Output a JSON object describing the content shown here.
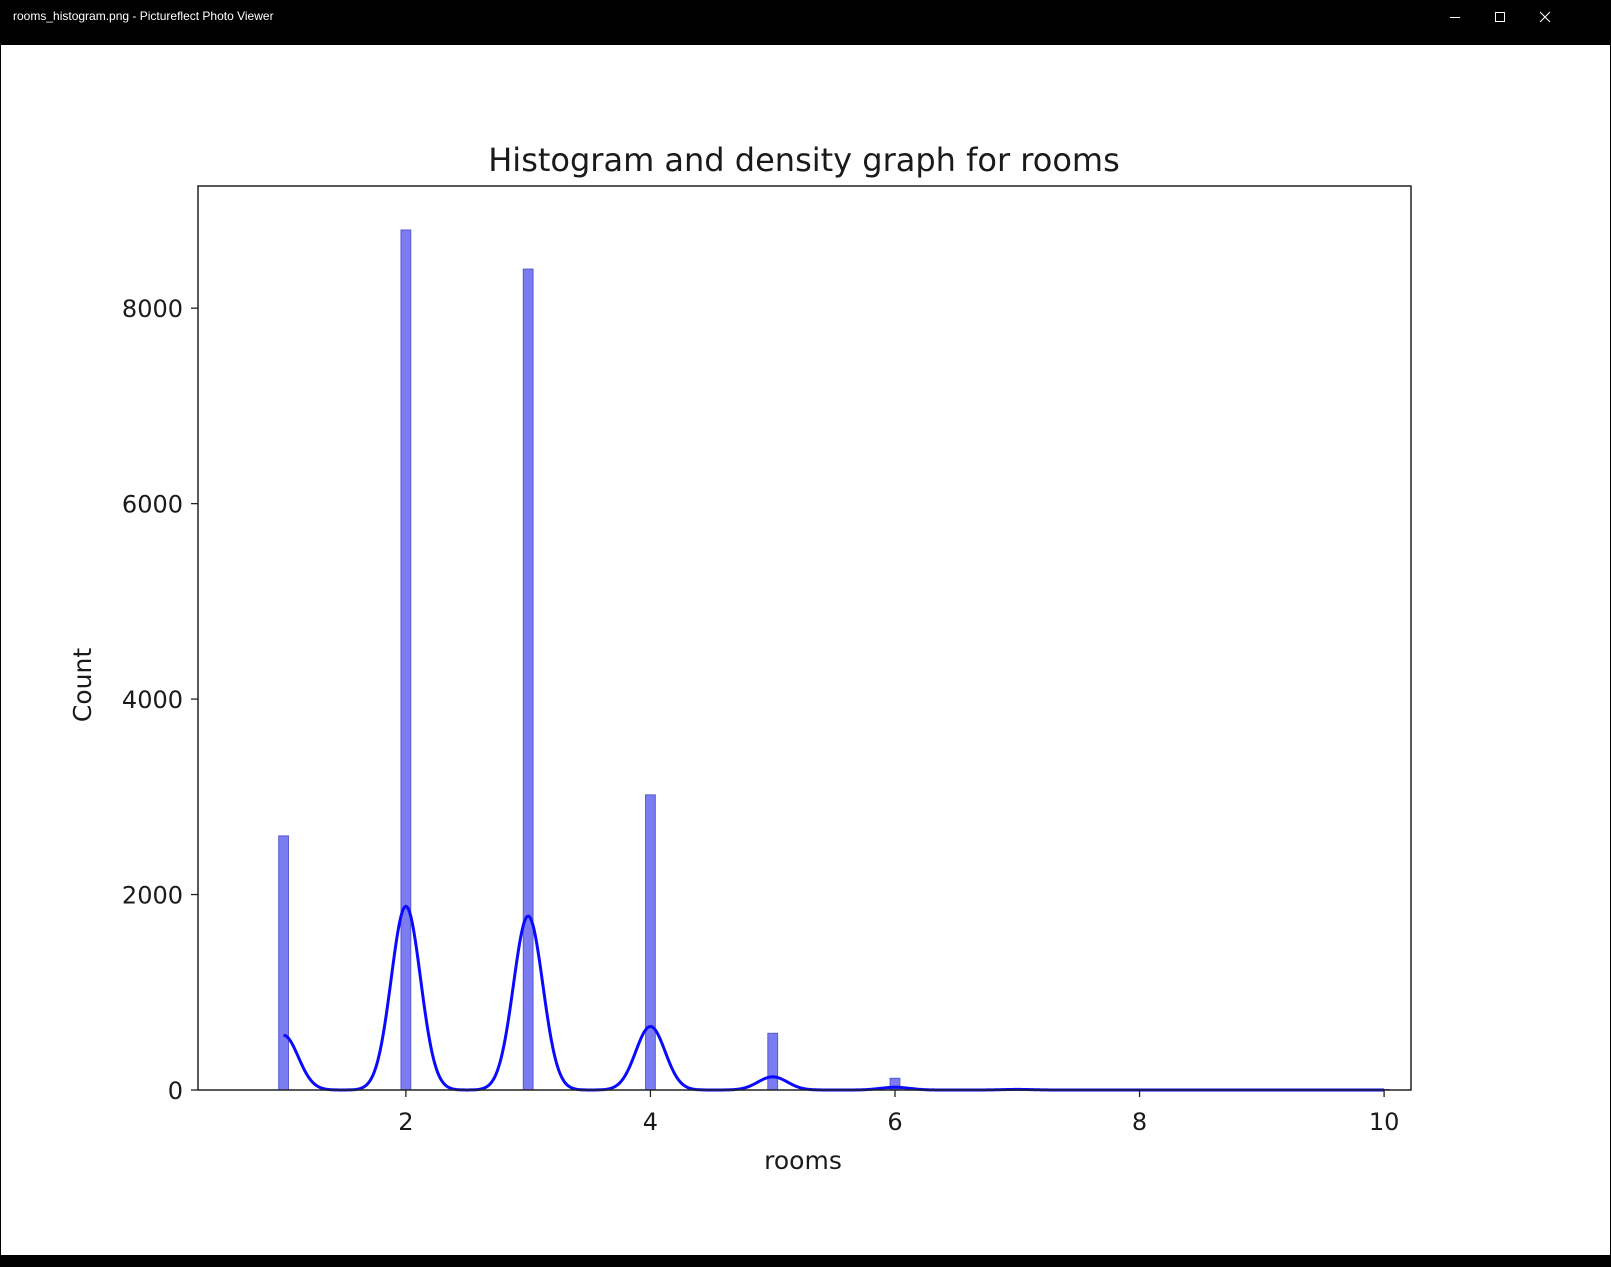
{
  "window": {
    "title": "rooms_histogram.png - Pictureflect Photo Viewer",
    "controls": {
      "minimize": "minimize-icon",
      "maximize": "maximize-icon",
      "close": "close-icon"
    }
  },
  "colors": {
    "bar_fill": "#7b7bf2",
    "bar_edge": "#5a5ad0",
    "kde_line": "#0a0aff"
  },
  "chart_data": {
    "type": "bar",
    "title": "Histogram and density graph for rooms",
    "xlabel": "rooms",
    "ylabel": "Count",
    "xlim": [
      0.3,
      10.22
    ],
    "ylim": [
      0,
      9250
    ],
    "xticks": [
      2,
      4,
      6,
      8,
      10
    ],
    "xtick_labels": [
      "2",
      "4",
      "6",
      "8",
      "10"
    ],
    "yticks": [
      0,
      2000,
      4000,
      6000,
      8000
    ],
    "ytick_labels": [
      "0",
      "2000",
      "4000",
      "6000",
      "8000"
    ],
    "grid": false,
    "bar_width": 0.08,
    "bars": [
      {
        "x": 1.0,
        "value": 2600
      },
      {
        "x": 2.0,
        "value": 8800
      },
      {
        "x": 3.0,
        "value": 8400
      },
      {
        "x": 4.0,
        "value": 3020
      },
      {
        "x": 5.0,
        "value": 580
      },
      {
        "x": 6.0,
        "value": 120
      },
      {
        "x": 7.0,
        "value": 15
      },
      {
        "x": 8.0,
        "value": 5
      },
      {
        "x": 10.0,
        "value": 3
      }
    ],
    "density": {
      "name": "kde",
      "peaks": [
        {
          "x": 1.0,
          "height": 560
        },
        {
          "x": 2.0,
          "height": 1880
        },
        {
          "x": 3.0,
          "height": 1780
        },
        {
          "x": 4.0,
          "height": 650
        },
        {
          "x": 5.0,
          "height": 135
        },
        {
          "x": 6.0,
          "height": 28
        },
        {
          "x": 7.0,
          "height": 6
        }
      ],
      "bandwidth": 0.12,
      "range": [
        1.0,
        10.0
      ]
    }
  }
}
